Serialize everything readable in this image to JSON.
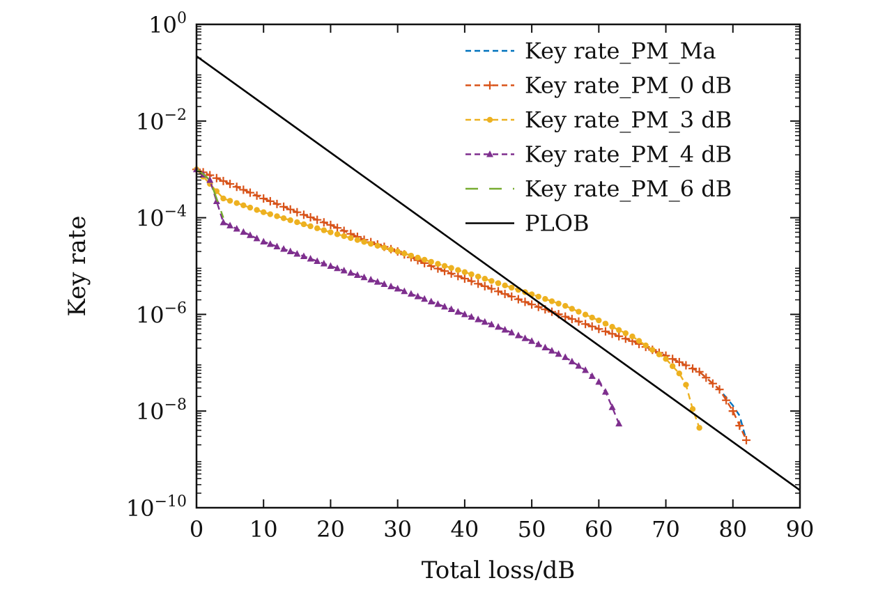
{
  "chart_data": {
    "type": "line",
    "title": "",
    "xlabel": "Total loss/dB",
    "ylabel": "Key rate",
    "xlim": [
      0,
      90
    ],
    "ylim": [
      1e-10,
      1
    ],
    "yscale": "log",
    "grid": false,
    "legend_position": "top-right",
    "x_ticks": [
      0,
      10,
      20,
      30,
      40,
      50,
      60,
      70,
      80,
      90
    ],
    "y_ticks": [
      {
        "value": 1.0,
        "base": "10",
        "exp": "0"
      },
      {
        "value": 0.01,
        "base": "10",
        "exp": "−2"
      },
      {
        "value": 0.0001,
        "base": "10",
        "exp": "−4"
      },
      {
        "value": 1e-06,
        "base": "10",
        "exp": "−6"
      },
      {
        "value": 1e-08,
        "base": "10",
        "exp": "−8"
      },
      {
        "value": 1e-10,
        "base": "10",
        "exp": "−10"
      }
    ],
    "series": [
      {
        "name": "Key rate_PM_Ma",
        "color": "#0072bd",
        "dash": "dashed",
        "marker": "none",
        "x": [
          0,
          5,
          10,
          15,
          20,
          25,
          30,
          35,
          40,
          45,
          50,
          55,
          60,
          65,
          70,
          75,
          78,
          80,
          81,
          82
        ],
        "y": [
          0.001,
          0.0005,
          0.00025,
          0.00013,
          7.1e-05,
          3.5e-05,
          2e-05,
          1e-05,
          5.5e-06,
          3e-06,
          1.6e-06,
          9e-07,
          5e-07,
          2.8e-07,
          1.4e-07,
          6.5e-08,
          2.8e-08,
          1.3e-08,
          8e-09,
          2.5e-09
        ]
      },
      {
        "name": "Key rate_PM_0 dB",
        "color": "#d95319",
        "dash": "dashed",
        "marker": "plus",
        "x": [
          0,
          5,
          10,
          15,
          20,
          25,
          30,
          35,
          40,
          45,
          50,
          55,
          60,
          65,
          70,
          75,
          78,
          80,
          81,
          82
        ],
        "y": [
          0.001,
          0.0005,
          0.00025,
          0.00013,
          7.1e-05,
          3.5e-05,
          2e-05,
          1e-05,
          5.5e-06,
          3e-06,
          1.6e-06,
          9e-07,
          5e-07,
          2.8e-07,
          1.4e-07,
          6.5e-08,
          2.8e-08,
          1e-08,
          5e-09,
          2.5e-09
        ]
      },
      {
        "name": "Key rate_PM_3 dB",
        "color": "#edb120",
        "dash": "dashed",
        "marker": "dot",
        "x": [
          0,
          2,
          4,
          10,
          20,
          30,
          40,
          50,
          55,
          60,
          65,
          70,
          72,
          73,
          74,
          75
        ],
        "y": [
          0.001,
          0.0005,
          0.00025,
          0.00013,
          5e-05,
          2e-05,
          7.5e-06,
          2.6e-06,
          1.5e-06,
          7.5e-07,
          3.5e-07,
          1.2e-07,
          6e-08,
          3.5e-08,
          1.1e-08,
          4.5e-09
        ]
      },
      {
        "name": "Key rate_PM_4 dB",
        "color": "#7e2f8e",
        "dash": "dashed",
        "marker": "triangle",
        "x": [
          0,
          2,
          4,
          10,
          20,
          30,
          40,
          45,
          50,
          55,
          58,
          60,
          61,
          62,
          63
        ],
        "y": [
          0.001,
          0.0006,
          8e-05,
          3.2e-05,
          1e-05,
          3.4e-06,
          1e-06,
          5.5e-07,
          2.8e-07,
          1.3e-07,
          7e-08,
          4e-08,
          2.5e-08,
          1.2e-08,
          5.5e-09
        ]
      },
      {
        "name": "Key rate_PM_6 dB",
        "color": "#77ac30",
        "dash": "longdash",
        "marker": "none",
        "x": [
          0,
          1,
          2,
          3,
          4
        ],
        "y": [
          0.001,
          0.0008,
          0.0006,
          0.00025,
          0.0001
        ]
      },
      {
        "name": "PLOB",
        "color": "#000000",
        "dash": "solid",
        "marker": "none",
        "x": [
          0,
          90
        ],
        "y": [
          0.22,
          2.3e-10
        ]
      }
    ]
  }
}
